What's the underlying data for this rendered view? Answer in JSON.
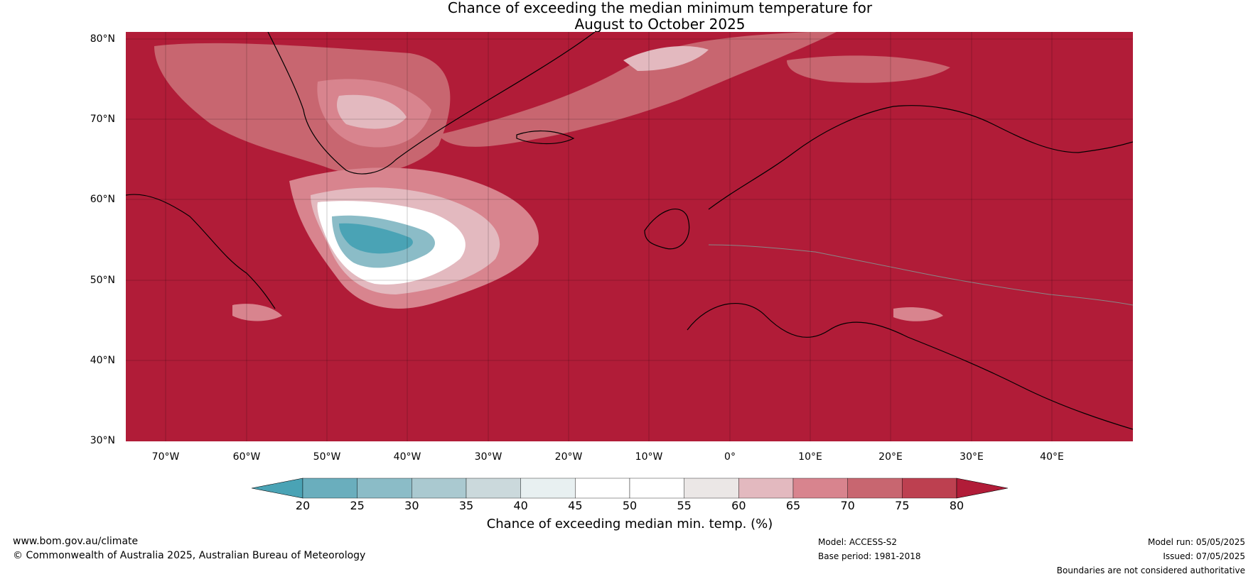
{
  "title_line1": "Chance of exceeding the median minimum temperature for",
  "title_line2": "August to October 2025",
  "lat_labels": [
    "80°N",
    "70°N",
    "60°N",
    "50°N",
    "40°N",
    "30°N"
  ],
  "lon_labels": [
    "70°W",
    "60°W",
    "50°W",
    "40°W",
    "30°W",
    "20°W",
    "10°W",
    "0°",
    "10°E",
    "20°E",
    "30°E",
    "40°E"
  ],
  "colorbar": {
    "ticks": [
      "20",
      "25",
      "30",
      "35",
      "40",
      "45",
      "50",
      "55",
      "60",
      "65",
      "70",
      "75",
      "80"
    ],
    "colors": [
      "#4aa3b5",
      "#6aaebd",
      "#8bbcc7",
      "#aac9d0",
      "#cbd9dc",
      "#e8f0f1",
      "#ffffff",
      "#ffffff",
      "#ebe7e6",
      "#e3b9bf",
      "#d8848e",
      "#c86670",
      "#bd4050",
      "#b11c38"
    ],
    "label": "Chance of exceeding median min. temp. (%)"
  },
  "map": {
    "background_color": "#b11c38",
    "extent": {
      "lon": [
        -75,
        50
      ],
      "lat": [
        30,
        81
      ]
    }
  },
  "footer": {
    "site": "www.bom.gov.au/climate",
    "copyright": "© Commonwealth of Australia 2025, Australian Bureau of Meteorology",
    "model": "Model: ACCESS-S2",
    "base_period": "Base period: 1981-2018",
    "model_run": "Model run: 05/05/2025",
    "issued": "Issued: 07/05/2025",
    "disclaimer": "Boundaries are not considered authoritative"
  }
}
